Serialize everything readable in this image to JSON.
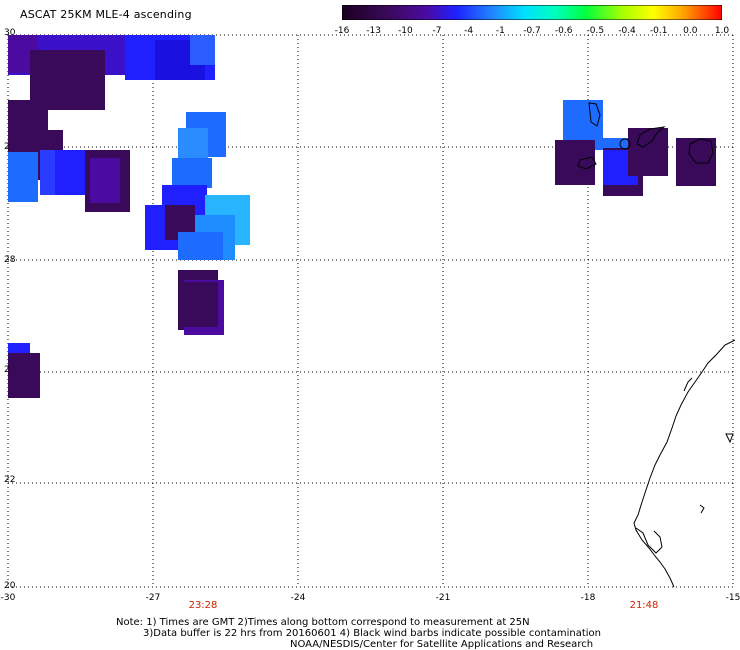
{
  "title": "ASCAT 25KM MLE-4 ascending",
  "colorbar": {
    "labels": [
      "-16",
      "-13",
      "-10",
      "-7",
      "-4",
      "-1",
      "-0.7",
      "-0.6",
      "-0.5",
      "-0.4",
      "-0.1",
      "0.0",
      "1.0"
    ],
    "colors": [
      "#1a0020",
      "#3a0a5a",
      "#4b0aa0",
      "#2020ff",
      "#1e6bff",
      "#00c8ff",
      "#00ffdc",
      "#00ff40",
      "#7cff00",
      "#ffff00",
      "#ffaa00",
      "#ff5000",
      "#ff0000"
    ]
  },
  "axes": {
    "x_ticks": [
      "-30",
      "-27",
      "-24",
      "-21",
      "-18",
      "-15"
    ],
    "y_ticks": [
      "30",
      "28",
      "22",
      "20"
    ],
    "y_ticks_partial": [
      "2",
      "2"
    ]
  },
  "times": [
    "23:28",
    "21:48"
  ],
  "notes": [
    "Note: 1) Times are GMT 2)Times along bottom correspond to measurement at 25N",
    "3)Data buffer is 22 hrs from 20160601 4) Black wind barbs indicate possible contamination",
    "NOAA/NESDIS/Center for Satellite Applications and Research"
  ],
  "colors": {
    "dark_purple": "#3a0a5a",
    "indigo": "#4b0aa0",
    "blue": "#2020ff",
    "light_blue": "#1e8bff",
    "sky_blue": "#28b4ff",
    "time_red": "#cc2200"
  }
}
